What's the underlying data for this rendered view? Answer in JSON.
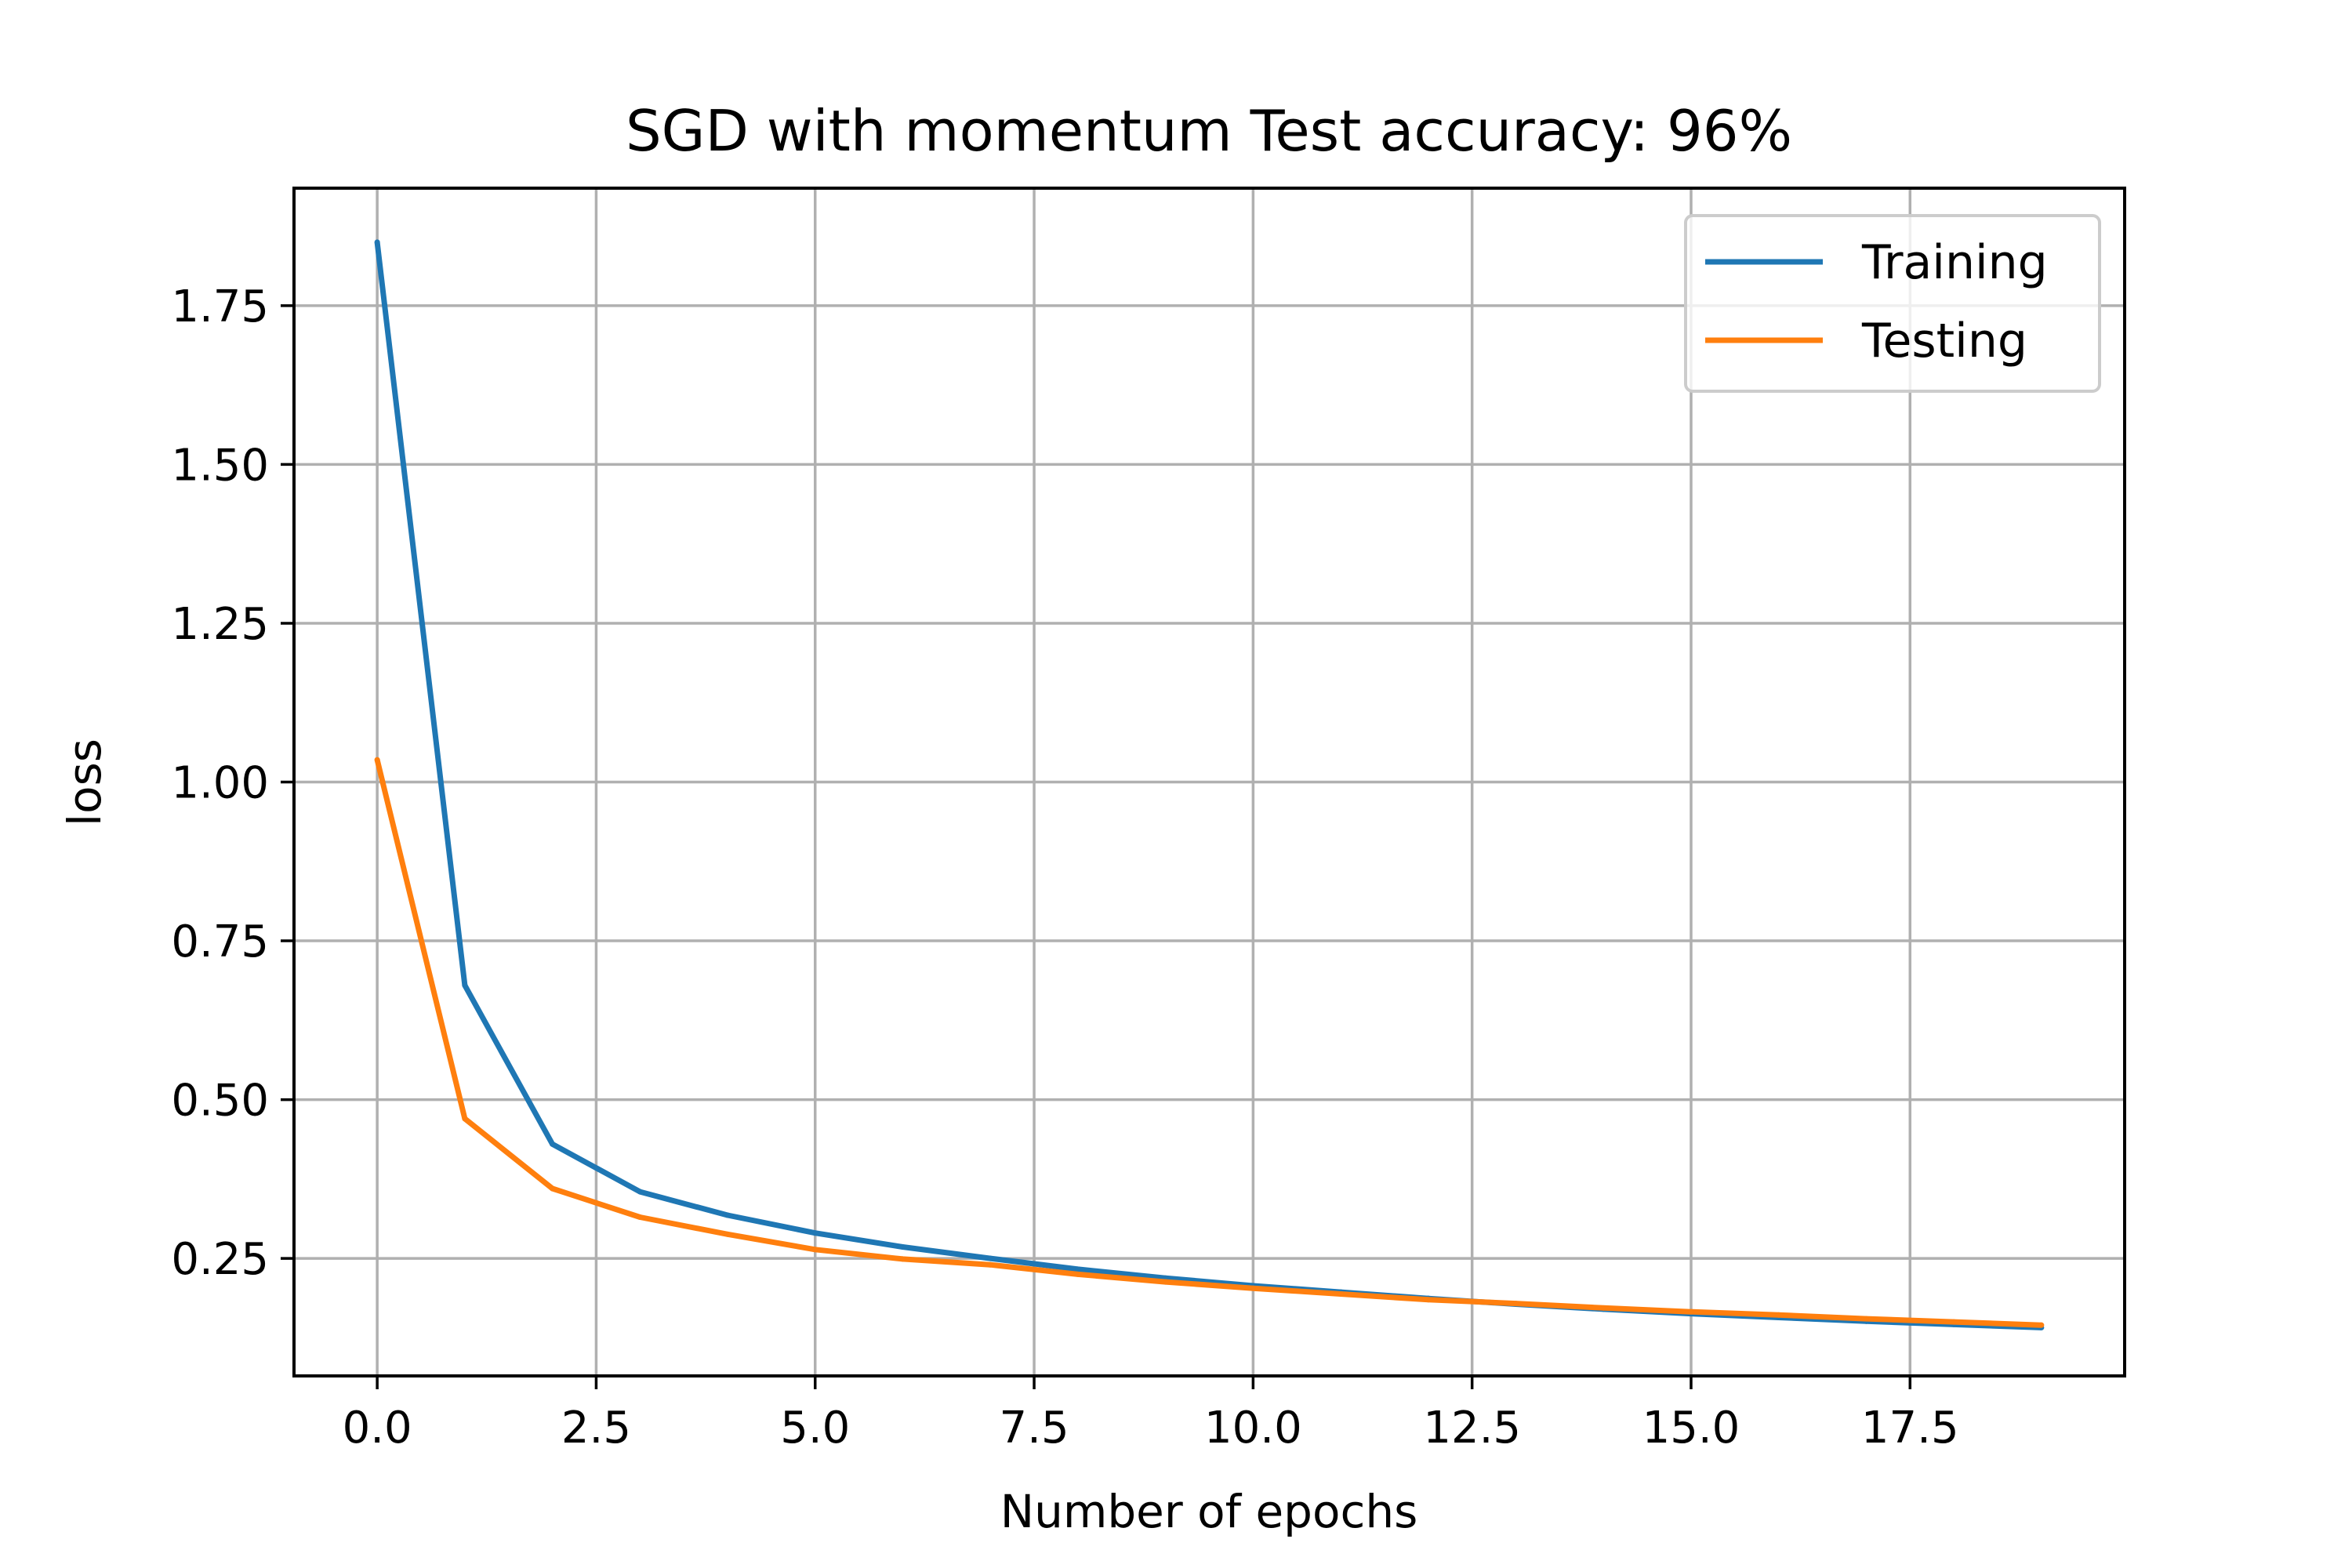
{
  "chart_data": {
    "type": "line",
    "title": "SGD with momentum Test accuracy: 96%",
    "xlabel": "Number of epochs",
    "ylabel": "loss",
    "xlim": [
      -0.95,
      19.95
    ],
    "ylim": [
      0.065,
      1.935
    ],
    "x_ticks": [
      0.0,
      2.5,
      5.0,
      7.5,
      10.0,
      12.5,
      15.0,
      17.5
    ],
    "x_tick_labels": [
      "0.0",
      "2.5",
      "5.0",
      "7.5",
      "10.0",
      "12.5",
      "15.0",
      "17.5"
    ],
    "y_ticks": [
      0.25,
      0.5,
      0.75,
      1.0,
      1.25,
      1.5,
      1.75
    ],
    "y_tick_labels": [
      "0.25",
      "0.50",
      "0.75",
      "1.00",
      "1.25",
      "1.50",
      "1.75"
    ],
    "grid": true,
    "legend_position": "top-right",
    "x": [
      0,
      1,
      2,
      3,
      4,
      5,
      6,
      7,
      8,
      9,
      10,
      11,
      12,
      13,
      14,
      15,
      16,
      17,
      18,
      19
    ],
    "series": [
      {
        "name": "Training",
        "color": "#1f77b4",
        "values": [
          1.85,
          0.68,
          0.43,
          0.355,
          0.318,
          0.29,
          0.268,
          0.25,
          0.233,
          0.219,
          0.207,
          0.197,
          0.187,
          0.178,
          0.17,
          0.163,
          0.157,
          0.151,
          0.146,
          0.141
        ]
      },
      {
        "name": "Testing",
        "color": "#ff7f0e",
        "values": [
          1.035,
          0.47,
          0.36,
          0.315,
          0.288,
          0.264,
          0.249,
          0.24,
          0.225,
          0.213,
          0.203,
          0.194,
          0.185,
          0.179,
          0.172,
          0.166,
          0.161,
          0.155,
          0.15,
          0.145
        ]
      }
    ]
  }
}
